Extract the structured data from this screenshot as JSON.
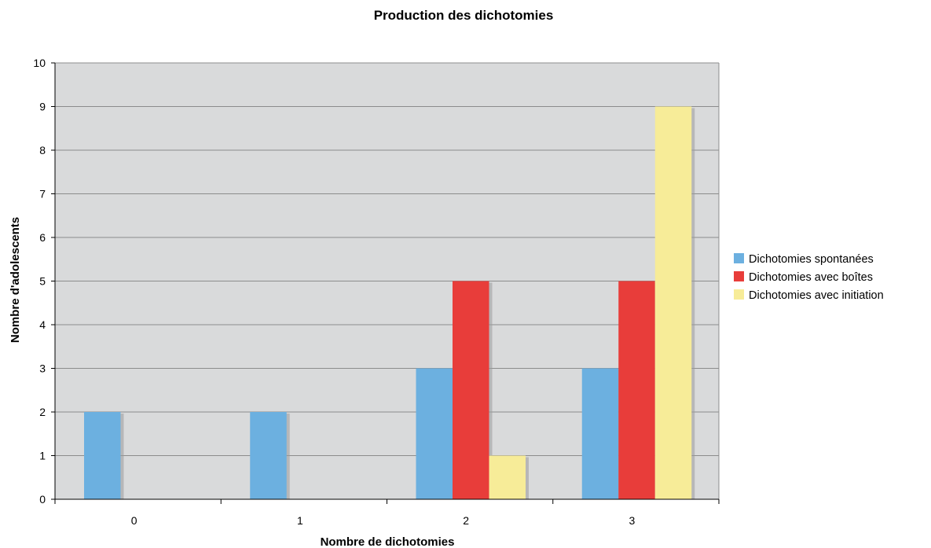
{
  "chart_data": {
    "type": "bar",
    "title": "Production des dichotomies",
    "xlabel": "Nombre de dichotomies",
    "ylabel": "Nombre d'adolescents",
    "categories": [
      "0",
      "1",
      "2",
      "3"
    ],
    "series": [
      {
        "name": "Dichotomies spontanées",
        "color": "#6cb0e0",
        "values": [
          2,
          2,
          3,
          3
        ]
      },
      {
        "name": "Dichotomies avec boîtes",
        "color": "#e83d3a",
        "values": [
          0,
          0,
          5,
          5
        ]
      },
      {
        "name": "Dichotomies avec initiation",
        "color": "#f7ec98",
        "values": [
          0,
          0,
          1,
          9
        ]
      }
    ],
    "ylim": [
      0,
      10
    ],
    "yticks": [
      0,
      1,
      2,
      3,
      4,
      5,
      6,
      7,
      8,
      9,
      10
    ],
    "grid": true,
    "legend_position": "right",
    "colors": {
      "plot_background": "#d9dadb",
      "gridline": "#8c8c8c",
      "shadow": "#9a9a9a"
    }
  }
}
